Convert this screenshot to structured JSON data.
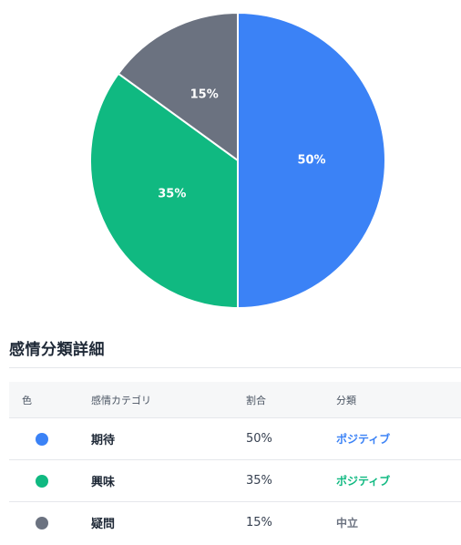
{
  "chart_data": {
    "type": "pie",
    "title": "",
    "categories": [
      "期待",
      "興味",
      "疑問"
    ],
    "values": [
      50,
      35,
      15
    ],
    "colors": [
      "#3b82f6",
      "#10b981",
      "#6b7280"
    ],
    "slice_labels": [
      "50%",
      "35%",
      "15%"
    ],
    "start_angle": "12 o'clock",
    "direction": "clockwise",
    "slice_border_color": "#ffffff",
    "legend": "none"
  },
  "details": {
    "title": "感情分類詳細",
    "headers": {
      "color": "色",
      "category": "感情カテゴリ",
      "ratio": "割合",
      "classification": "分類"
    },
    "rows": [
      {
        "color": "#3b82f6",
        "category": "期待",
        "ratio": "50%",
        "classification": "ポジティブ",
        "classification_color": "#3b82f6"
      },
      {
        "color": "#10b981",
        "category": "興味",
        "ratio": "35%",
        "classification": "ポジティブ",
        "classification_color": "#10b981"
      },
      {
        "color": "#6b7280",
        "category": "疑問",
        "ratio": "15%",
        "classification": "中立",
        "classification_color": "#6b7280"
      }
    ]
  }
}
